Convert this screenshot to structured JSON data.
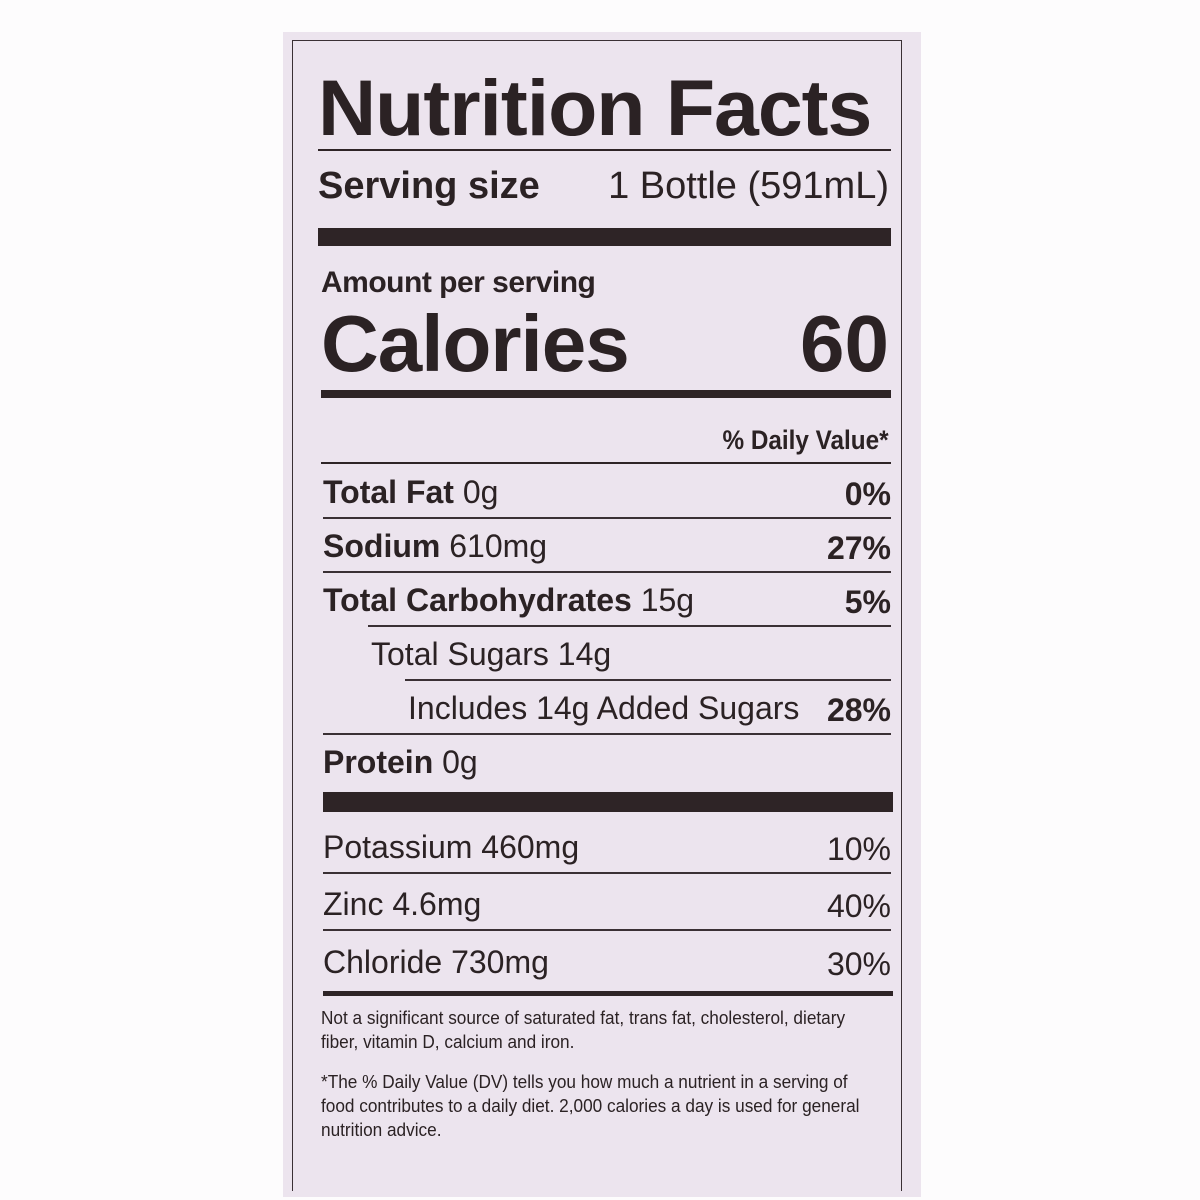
{
  "title": "Nutrition Facts",
  "serving": {
    "label": "Serving size",
    "value": "1 Bottle (591mL)"
  },
  "amount_per_serving": "Amount per serving",
  "calories": {
    "label": "Calories",
    "value": "60"
  },
  "daily_value_header": "% Daily Value*",
  "nutrients": [
    {
      "name": "Total Fat",
      "amount": "0g",
      "dv": "0%"
    },
    {
      "name": "Sodium",
      "amount": "610mg",
      "dv": "27%"
    },
    {
      "name": "Total Carbohydrates",
      "amount": "15g",
      "dv": "5%"
    },
    {
      "name": "Total Sugars 14g",
      "amount": "",
      "dv": ""
    },
    {
      "name": "Includes 14g Added Sugars",
      "amount": "",
      "dv": "28%"
    },
    {
      "name": "Protein",
      "amount": "0g",
      "dv": ""
    }
  ],
  "minerals": [
    {
      "name": "Potassium 460mg",
      "dv": "10%"
    },
    {
      "name": "Zinc 4.6mg",
      "dv": "40%"
    },
    {
      "name": "Chloride 730mg",
      "dv": "30%"
    }
  ],
  "footnotes": [
    "Not a significant source of saturated fat, trans fat, cholesterol, dietary fiber, vitamin D, calcium and iron.",
    "*The % Daily Value (DV) tells you how much a nutrient in a serving of food contributes to a daily diet. 2,000 calories a day is used for general nutrition advice."
  ],
  "colors": {
    "label_background": "#ece4ee",
    "ink": "#2b2224"
  }
}
